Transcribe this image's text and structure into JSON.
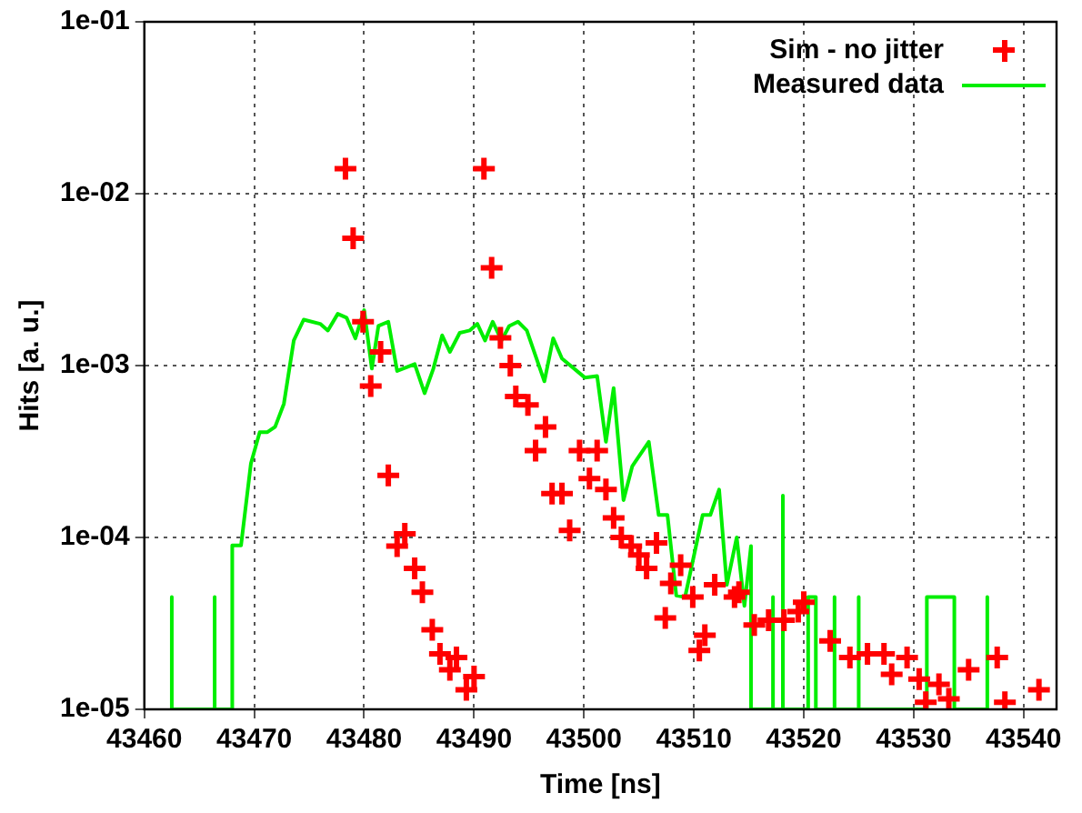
{
  "chart_data": {
    "type": "scatter",
    "xlabel": "Time [ns]",
    "ylabel": "Hits [a. u.]",
    "log": "y",
    "grid": true,
    "legend": "top right",
    "xlim": [
      43460,
      43543
    ],
    "xticks": [
      43460,
      43470,
      43480,
      43490,
      43500,
      43510,
      43520,
      43530,
      43540
    ],
    "ylim": [
      1e-05,
      0.1
    ],
    "yticks": [
      {
        "value": 1e-05,
        "label": "1e-05"
      },
      {
        "value": 0.0001,
        "label": "1e-04"
      },
      {
        "value": 0.001,
        "label": "1e-03"
      },
      {
        "value": 0.01,
        "label": "1e-02"
      },
      {
        "value": 0.1,
        "label": "1e-01"
      }
    ],
    "series": [
      {
        "name": "Sim - no jitter",
        "type": "scatter",
        "marker": "cross",
        "color": "#ff0000",
        "x": [
          43478.3,
          43479,
          43490.9,
          43491.6,
          43479.9,
          43481.5,
          43480.6,
          43482.2,
          43483.7,
          43483.0,
          43484.6,
          43485.3,
          43486.2,
          43486.9,
          43488.4,
          43487.8,
          43490.0,
          43489.3,
          43492.4,
          43493.3,
          43493.8,
          43494.9,
          43496.5,
          43495.6,
          43499.6,
          43501.2,
          43500.5,
          43502.0,
          43497.1,
          43498.0,
          43498.7,
          43502.7,
          43503.4,
          43504.3,
          43505.0,
          43505.7,
          43506.6,
          43508.8,
          43507.9,
          43509.9,
          43507.4,
          43511.9,
          43514.1,
          43513.7,
          43511.0,
          43510.5,
          43515.5,
          43516.8,
          43518.2,
          43519.5,
          43520.0,
          43522.4,
          43524.2,
          43525.8,
          43527.3,
          43528.0,
          43529.4,
          43530.5,
          43531.1,
          43532.3,
          43533.2,
          43535.0,
          43537.6,
          43538.3,
          43541.4
        ],
        "values": [
          0.014,
          0.0055,
          0.014,
          0.0037,
          0.0018,
          0.0012,
          0.00076,
          0.00023,
          0.000105,
          8.9e-05,
          6.6e-05,
          4.8e-05,
          2.9e-05,
          2.1e-05,
          2e-05,
          1.7e-05,
          1.55e-05,
          1.3e-05,
          0.00145,
          0.001,
          0.00066,
          0.00059,
          0.00044,
          0.00032,
          0.00032,
          0.00032,
          0.00022,
          0.00019,
          0.00018,
          0.00018,
          0.00011,
          0.00013,
          0.0001,
          8.9e-05,
          7.9e-05,
          6.6e-05,
          9.3e-05,
          6.9e-05,
          5.4e-05,
          4.5e-05,
          3.4e-05,
          5.3e-05,
          4.8e-05,
          4.5e-05,
          2.7e-05,
          2.2e-05,
          3.1e-05,
          3.3e-05,
          3.3e-05,
          3.7e-05,
          4.2e-05,
          2.5e-05,
          2e-05,
          2.1e-05,
          2.1e-05,
          1.6e-05,
          2e-05,
          1.5e-05,
          1.1e-05,
          1.4e-05,
          1.15e-05,
          1.7e-05,
          2e-05,
          1.1e-05,
          1.3e-05
        ]
      },
      {
        "name": "Measured data",
        "type": "line",
        "marker": "none",
        "color": "#00ee00",
        "x": [
          43462.5,
          43462.5,
          43462.5,
          43466.4,
          43466.4,
          43466.4,
          43468.0,
          43468.0,
          43468.8,
          43469.7,
          43470.5,
          43471.2,
          43471.9,
          43472.7,
          43473.6,
          43474.5,
          43476.0,
          43476.7,
          43477.6,
          43478.4,
          43479.2,
          43480.0,
          43480.7,
          43481.3,
          43482.2,
          43483.0,
          43484.6,
          43485.5,
          43486.3,
          43487.1,
          43487.8,
          43488.7,
          43489.6,
          43490.3,
          43491.0,
          43491.7,
          43492.5,
          43493.2,
          43494.0,
          43494.8,
          43496.4,
          43497.2,
          43498.0,
          43500.1,
          43501.2,
          43502.0,
          43502.7,
          43503.6,
          43504.4,
          43505.9,
          43506.8,
          43507.6,
          43508.4,
          43509.2,
          43510.8,
          43511.5,
          43512.3,
          43513.0,
          43513.9,
          43514.6,
          43515.2,
          43515.2,
          43517.2,
          43517.2,
          43517.2,
          43518.1,
          43518.1,
          43518.1,
          43520.4,
          43520.4,
          43521.1,
          43521.1,
          43522.8,
          43522.8,
          43522.8,
          43525.0,
          43525.0,
          43525.0,
          43531.2,
          43531.2,
          43533.7,
          43533.7,
          43536.7,
          43536.7,
          43536.7
        ],
        "values": [
          1e-05,
          4.5e-05,
          1e-05,
          1e-05,
          4.5e-05,
          1e-05,
          1e-05,
          9e-05,
          9e-05,
          0.00027,
          0.00041,
          0.00041,
          0.00044,
          0.0006,
          0.0014,
          0.00185,
          0.00175,
          0.0016,
          0.002,
          0.0019,
          0.00144,
          0.0021,
          0.00096,
          0.0017,
          0.0018,
          0.00093,
          0.00102,
          0.00069,
          0.00096,
          0.0015,
          0.0012,
          0.00155,
          0.0016,
          0.00175,
          0.0014,
          0.0018,
          0.0014,
          0.0017,
          0.0018,
          0.0016,
          0.00081,
          0.00144,
          0.0011,
          0.00085,
          0.00087,
          0.00036,
          0.00074,
          0.000165,
          0.00026,
          0.00036,
          0.000135,
          0.000135,
          4.6e-05,
          4.5e-05,
          0.000135,
          0.000135,
          0.00019,
          5.3e-05,
          0.0001,
          4e-05,
          8.9e-05,
          1e-05,
          1e-05,
          4.5e-05,
          1e-05,
          1e-05,
          0.000175,
          1e-05,
          1e-05,
          4.5e-05,
          4.5e-05,
          1e-05,
          1e-05,
          4.5e-05,
          1e-05,
          1e-05,
          4.5e-05,
          1e-05,
          1e-05,
          4.5e-05,
          4.5e-05,
          1e-05,
          1e-05,
          4.5e-05,
          1e-05
        ]
      }
    ]
  }
}
